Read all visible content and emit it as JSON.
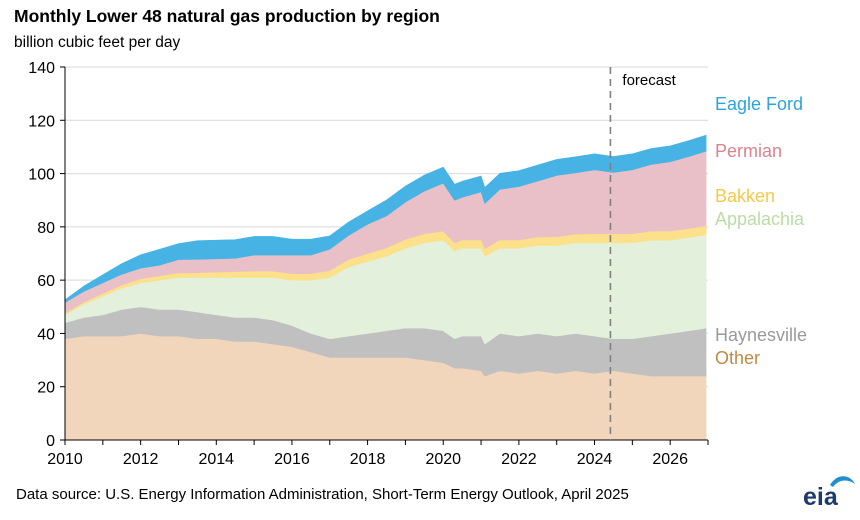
{
  "title": "Monthly Lower 48 natural gas production by region",
  "subtitle": "billion  cubic  feet per day",
  "source": "Data source: U.S. Energy Information Administration, Short-Term Energy Outlook, April 2025",
  "logo_text": "eia",
  "forecast_label": "forecast",
  "chart_data": {
    "type": "area",
    "stacked": true,
    "title": "Monthly Lower 48 natural gas production by region",
    "ylabel": "billion  cubic  feet per day",
    "xlim": [
      2010,
      2027
    ],
    "ylim": [
      0,
      140
    ],
    "xticks": [
      2010,
      2012,
      2014,
      2016,
      2018,
      2020,
      2022,
      2024,
      2026
    ],
    "yticks": [
      0,
      20,
      40,
      60,
      80,
      100,
      120,
      140
    ],
    "forecast_start": 2024.42,
    "grid": "horizontal",
    "legend": "right-inline",
    "x": [
      2010.0,
      2010.5,
      2011.0,
      2011.5,
      2012.0,
      2012.5,
      2013.0,
      2013.5,
      2014.0,
      2014.5,
      2015.0,
      2015.5,
      2016.0,
      2016.5,
      2017.0,
      2017.5,
      2018.0,
      2018.5,
      2019.0,
      2019.5,
      2020.0,
      2020.3,
      2020.5,
      2021.0,
      2021.1,
      2021.5,
      2022.0,
      2022.5,
      2023.0,
      2023.5,
      2024.0,
      2024.5,
      2025.0,
      2025.5,
      2026.0,
      2026.5,
      2026.95
    ],
    "series": [
      {
        "name": "Other",
        "color": "#f2d6bb",
        "values": [
          38,
          39,
          39,
          39,
          40,
          39,
          39,
          38,
          38,
          37,
          37,
          36,
          35,
          33,
          31,
          31,
          31,
          31,
          31,
          30,
          29,
          27,
          27,
          26,
          24,
          26,
          25,
          26,
          25,
          26,
          25,
          26,
          25,
          24,
          24,
          24,
          24
        ]
      },
      {
        "name": "Haynesville",
        "color": "#c0c0c0",
        "values": [
          6,
          7,
          8,
          10,
          10,
          10,
          10,
          10,
          9,
          9,
          9,
          9,
          8,
          7,
          7,
          8,
          9,
          10,
          11,
          12,
          12,
          11,
          12,
          13,
          12,
          14,
          14,
          14,
          14,
          14,
          14,
          12,
          13,
          15,
          16,
          17,
          18
        ]
      },
      {
        "name": "Appalachia",
        "color": "#e3f0dc",
        "values": [
          3,
          5,
          7,
          8,
          9,
          11,
          12,
          13,
          14,
          15,
          15,
          16,
          17,
          20,
          23,
          26,
          27,
          28,
          30,
          32,
          34,
          33,
          33,
          33,
          33,
          32,
          33,
          33,
          34,
          34,
          35,
          36,
          36,
          36,
          35,
          35,
          35
        ]
      },
      {
        "name": "Bakken",
        "color": "#fce08a",
        "values": [
          0.6,
          0.8,
          1.0,
          1.2,
          1.5,
          1.6,
          1.7,
          1.8,
          2.0,
          2.2,
          2.4,
          2.4,
          2.4,
          2.4,
          2.6,
          2.8,
          3.0,
          3.1,
          3.3,
          3.4,
          3.4,
          3.0,
          3.1,
          3.1,
          2.8,
          3.1,
          3.1,
          3.2,
          3.3,
          3.3,
          3.4,
          3.4,
          3.4,
          3.4,
          3.4,
          3.4,
          3.4
        ]
      },
      {
        "name": "Permian",
        "color": "#e9c0c7",
        "values": [
          4,
          4,
          4,
          4,
          4,
          4,
          5,
          5,
          5,
          5,
          6,
          6,
          7,
          7,
          8,
          9,
          11,
          12,
          14,
          16,
          18,
          16,
          16,
          18,
          17,
          19,
          20,
          21,
          23,
          23,
          24,
          23,
          24,
          25,
          26,
          27,
          28
        ]
      },
      {
        "name": "Eagle Ford",
        "color": "#47b3e4",
        "values": [
          1,
          2,
          3,
          4,
          5,
          6,
          6,
          7,
          7,
          7,
          7,
          7,
          6,
          6,
          5,
          5,
          5,
          6,
          6,
          6,
          6,
          6,
          6,
          6,
          6,
          6,
          6,
          6,
          6,
          6,
          6,
          6,
          6,
          6,
          6,
          6,
          6
        ]
      }
    ]
  }
}
